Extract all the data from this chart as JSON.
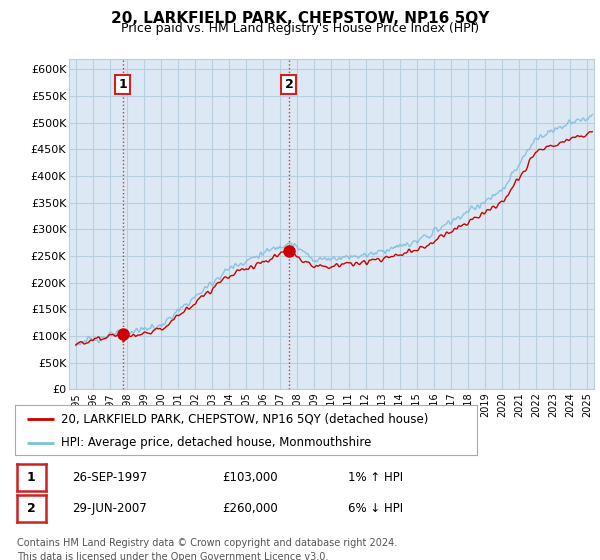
{
  "title": "20, LARKFIELD PARK, CHEPSTOW, NP16 5QY",
  "subtitle": "Price paid vs. HM Land Registry's House Price Index (HPI)",
  "ylabel_ticks": [
    "£0",
    "£50K",
    "£100K",
    "£150K",
    "£200K",
    "£250K",
    "£300K",
    "£350K",
    "£400K",
    "£450K",
    "£500K",
    "£550K",
    "£600K"
  ],
  "ylim": [
    0,
    620000
  ],
  "ytick_values": [
    0,
    50000,
    100000,
    150000,
    200000,
    250000,
    300000,
    350000,
    400000,
    450000,
    500000,
    550000,
    600000
  ],
  "hpi_color": "#7fbfde",
  "sale_color": "#cc0000",
  "dashed_color": "#cc2222",
  "bg_color": "#ffffff",
  "chart_bg_color": "#dce9f5",
  "grid_color": "#b8cfe0",
  "sale1_x": 1997.74,
  "sale1_y": 103000,
  "sale2_x": 2007.5,
  "sale2_y": 260000,
  "legend_red_label": "20, LARKFIELD PARK, CHEPSTOW, NP16 5QY (detached house)",
  "legend_blue_label": "HPI: Average price, detached house, Monmouthshire",
  "table_rows": [
    {
      "num": "1",
      "date": "26-SEP-1997",
      "price": "£103,000",
      "hpi": "1% ↑ HPI"
    },
    {
      "num": "2",
      "date": "29-JUN-2007",
      "price": "£260,000",
      "hpi": "6% ↓ HPI"
    }
  ],
  "footer": "Contains HM Land Registry data © Crown copyright and database right 2024.\nThis data is licensed under the Open Government Licence v3.0.",
  "xmin": 1994.6,
  "xmax": 2025.4
}
